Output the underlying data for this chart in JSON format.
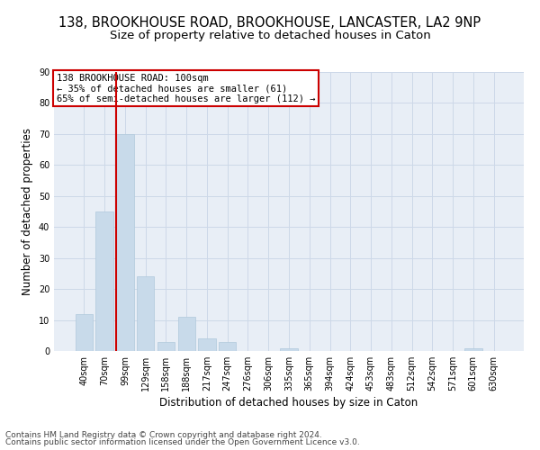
{
  "title_line1": "138, BROOKHOUSE ROAD, BROOKHOUSE, LANCASTER, LA2 9NP",
  "title_line2": "Size of property relative to detached houses in Caton",
  "xlabel": "Distribution of detached houses by size in Caton",
  "ylabel": "Number of detached properties",
  "categories": [
    "40sqm",
    "70sqm",
    "99sqm",
    "129sqm",
    "158sqm",
    "188sqm",
    "217sqm",
    "247sqm",
    "276sqm",
    "306sqm",
    "335sqm",
    "365sqm",
    "394sqm",
    "424sqm",
    "453sqm",
    "483sqm",
    "512sqm",
    "542sqm",
    "571sqm",
    "601sqm",
    "630sqm"
  ],
  "values": [
    12,
    45,
    70,
    24,
    3,
    11,
    4,
    3,
    0,
    0,
    1,
    0,
    0,
    0,
    0,
    0,
    0,
    0,
    0,
    1,
    0
  ],
  "bar_color": "#c8daea",
  "bar_edge_color": "#b0c8dc",
  "grid_color": "#cdd8e8",
  "background_color": "#e8eef6",
  "vline_x_index": 2,
  "vline_color": "#cc0000",
  "annotation_text": "138 BROOKHOUSE ROAD: 100sqm\n← 35% of detached houses are smaller (61)\n65% of semi-detached houses are larger (112) →",
  "annotation_box_color": "#ffffff",
  "annotation_border_color": "#cc0000",
  "ylim": [
    0,
    90
  ],
  "yticks": [
    0,
    10,
    20,
    30,
    40,
    50,
    60,
    70,
    80,
    90
  ],
  "footer_line1": "Contains HM Land Registry data © Crown copyright and database right 2024.",
  "footer_line2": "Contains public sector information licensed under the Open Government Licence v3.0.",
  "title_fontsize": 10.5,
  "subtitle_fontsize": 9.5,
  "axis_label_fontsize": 8.5,
  "tick_fontsize": 7,
  "annotation_fontsize": 7.5,
  "footer_fontsize": 6.5
}
